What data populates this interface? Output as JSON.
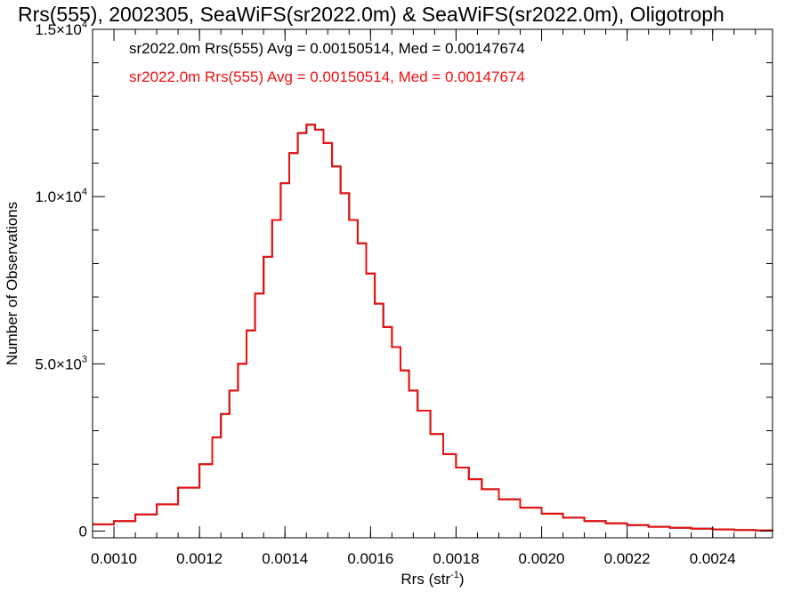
{
  "chart_data": {
    "type": "line",
    "title": "Rrs(555), 2002305, SeaWiFS(sr2022.0m) & SeaWiFS(sr2022.0m), Oligotroph",
    "xlabel": {
      "base": "Rrs (str",
      "sup": "-1",
      "tail": ")"
    },
    "ylabel": "Number of Observations",
    "xlim": [
      0.00095,
      0.00254
    ],
    "ylim": [
      -200,
      15000
    ],
    "x_ticks": [
      {
        "value": 0.001,
        "label": "0.0010"
      },
      {
        "value": 0.0012,
        "label": "0.0012"
      },
      {
        "value": 0.0014,
        "label": "0.0014"
      },
      {
        "value": 0.0016,
        "label": "0.0016"
      },
      {
        "value": 0.0018,
        "label": "0.0018"
      },
      {
        "value": 0.002,
        "label": "0.0020"
      },
      {
        "value": 0.0022,
        "label": "0.0022"
      },
      {
        "value": 0.0024,
        "label": "0.0024"
      }
    ],
    "y_ticks": [
      {
        "value": 0,
        "mant": "0",
        "exp": ""
      },
      {
        "value": 5000,
        "mant": "5.0×10",
        "exp": "3"
      },
      {
        "value": 10000,
        "mant": "1.0×10",
        "exp": "4"
      },
      {
        "value": 15000,
        "mant": "1.5×10",
        "exp": "4"
      }
    ],
    "grid": false,
    "legend_position": "top-left",
    "series": [
      {
        "name": "sr2022.0m Rrs(555) Avg = 0.00150514, Med = 0.00147674",
        "color": "#000000",
        "x": [
          0.00095,
          0.001,
          0.00105,
          0.0011,
          0.00115,
          0.0012,
          0.00123,
          0.00125,
          0.00127,
          0.00129,
          0.00131,
          0.00133,
          0.00135,
          0.00137,
          0.00139,
          0.00141,
          0.00143,
          0.00145,
          0.00147,
          0.00149,
          0.00151,
          0.00153,
          0.00155,
          0.00157,
          0.00159,
          0.00161,
          0.00163,
          0.00165,
          0.00167,
          0.00169,
          0.00171,
          0.00174,
          0.00177,
          0.0018,
          0.00183,
          0.00186,
          0.0019,
          0.00195,
          0.002,
          0.00205,
          0.0021,
          0.00215,
          0.0022,
          0.00225,
          0.0023,
          0.00235,
          0.0024,
          0.00245,
          0.0025,
          0.00254
        ],
        "y": [
          200,
          300,
          500,
          800,
          1300,
          2000,
          2800,
          3500,
          4200,
          5000,
          6000,
          7100,
          8200,
          9300,
          10400,
          11300,
          11900,
          12150,
          12000,
          11600,
          10900,
          10100,
          9300,
          8600,
          7700,
          6800,
          6100,
          5500,
          4800,
          4200,
          3600,
          2900,
          2300,
          1900,
          1550,
          1250,
          950,
          700,
          520,
          400,
          300,
          230,
          180,
          130,
          100,
          75,
          50,
          35,
          20,
          15
        ]
      },
      {
        "name": "sr2022.0m Rrs(555) Avg = 0.00150514, Med = 0.00147674",
        "color": "#ee1111",
        "x": [
          0.00095,
          0.001,
          0.00105,
          0.0011,
          0.00115,
          0.0012,
          0.00123,
          0.00125,
          0.00127,
          0.00129,
          0.00131,
          0.00133,
          0.00135,
          0.00137,
          0.00139,
          0.00141,
          0.00143,
          0.00145,
          0.00147,
          0.00149,
          0.00151,
          0.00153,
          0.00155,
          0.00157,
          0.00159,
          0.00161,
          0.00163,
          0.00165,
          0.00167,
          0.00169,
          0.00171,
          0.00174,
          0.00177,
          0.0018,
          0.00183,
          0.00186,
          0.0019,
          0.00195,
          0.002,
          0.00205,
          0.0021,
          0.00215,
          0.0022,
          0.00225,
          0.0023,
          0.00235,
          0.0024,
          0.00245,
          0.0025,
          0.00254
        ],
        "y": [
          200,
          300,
          500,
          800,
          1300,
          2000,
          2800,
          3500,
          4200,
          5000,
          6000,
          7100,
          8200,
          9300,
          10400,
          11300,
          11900,
          12150,
          12000,
          11600,
          10900,
          10100,
          9300,
          8600,
          7700,
          6800,
          6100,
          5500,
          4800,
          4200,
          3600,
          2900,
          2300,
          1900,
          1550,
          1250,
          950,
          700,
          520,
          400,
          300,
          230,
          180,
          130,
          100,
          75,
          50,
          35,
          20,
          15
        ]
      }
    ]
  }
}
